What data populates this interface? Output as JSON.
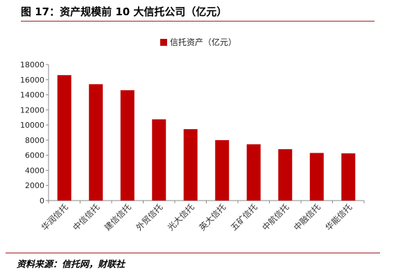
{
  "figure_title": "图 17：资产规模前 10 大信托公司（亿元）",
  "source_note": "资料来源：信托网，财联社",
  "colors": {
    "bar": "#c00000",
    "rule": "#9b1c1c",
    "axis": "#888888"
  },
  "chart_data": {
    "type": "bar",
    "title": "",
    "xlabel": "",
    "ylabel": "",
    "ylim": [
      0,
      18000
    ],
    "yticks": [
      0,
      2000,
      4000,
      6000,
      8000,
      10000,
      12000,
      14000,
      16000,
      18000
    ],
    "grid": false,
    "legend_position": "top-center",
    "categories": [
      "华润信托",
      "中信信托",
      "建信信托",
      "外贸信托",
      "光大信托",
      "英大信托",
      "五矿信托",
      "中航信托",
      "中融信托",
      "华能信托"
    ],
    "series": [
      {
        "name": "信托资产（亿元）",
        "values": [
          16600,
          15400,
          14600,
          10750,
          9450,
          8000,
          7450,
          6800,
          6300,
          6250
        ]
      }
    ]
  }
}
